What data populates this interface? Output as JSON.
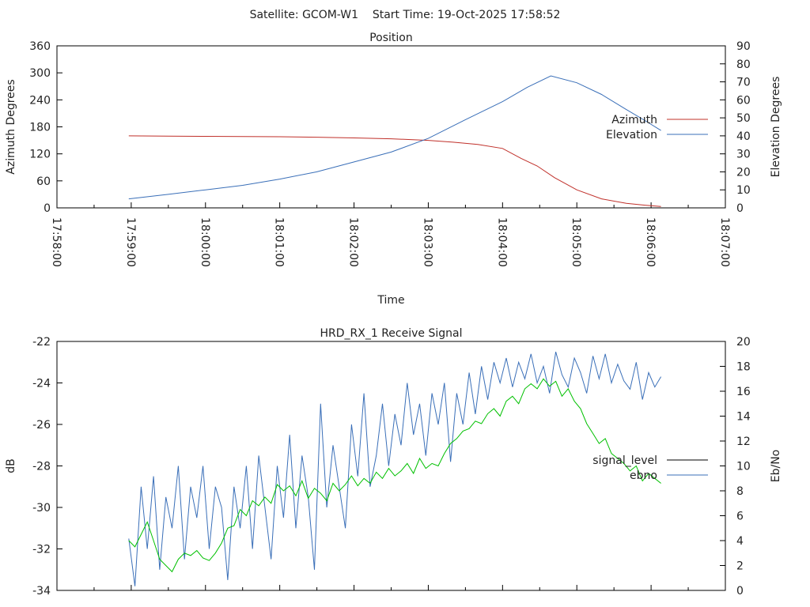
{
  "header": {
    "title": "Satellite: GCOM-W1    Start Time: 19-Oct-2025 17:58:52"
  },
  "chart_data": [
    {
      "type": "line",
      "title": "Position",
      "xlabel": "Time",
      "ylabel": "Azimuth Degrees",
      "y2label": "Elevation Degrees",
      "xlim_seconds": [
        0,
        540
      ],
      "x_origin": "17:58:00",
      "xticks": [
        "17:58:00",
        "17:59:00",
        "18:00:00",
        "18:01:00",
        "18:02:00",
        "18:03:00",
        "18:04:00",
        "18:05:00",
        "18:06:00",
        "18:07:00"
      ],
      "ylim": [
        0,
        360
      ],
      "yticks": [
        "0",
        "60",
        "120",
        "180",
        "240",
        "300",
        "360"
      ],
      "y2lim": [
        0,
        90
      ],
      "y2ticks": [
        "0",
        "10",
        "20",
        "30",
        "40",
        "50",
        "60",
        "70",
        "80",
        "90"
      ],
      "legend_position": "right",
      "series": [
        {
          "name": "Azimuth",
          "axis": "y",
          "color": "#c0302a",
          "x": [
            58,
            90,
            120,
            150,
            180,
            210,
            240,
            270,
            300,
            320,
            340,
            360,
            375,
            388,
            402,
            420,
            440,
            460,
            475,
            488
          ],
          "values": [
            160,
            159.5,
            159,
            158.5,
            158,
            157,
            155.5,
            153.5,
            150,
            146,
            141,
            132,
            110,
            93,
            67,
            40,
            20,
            10,
            6,
            3
          ]
        },
        {
          "name": "Elevation",
          "axis": "y2",
          "color": "#3a6fb8",
          "x": [
            58,
            90,
            120,
            150,
            180,
            210,
            240,
            270,
            300,
            330,
            360,
            380,
            399,
            420,
            440,
            459,
            475,
            488
          ],
          "values": [
            5,
            7.5,
            10,
            12.5,
            16,
            20,
            25.5,
            31,
            38.6,
            49,
            59,
            67,
            73.3,
            69.5,
            63,
            55,
            48.5,
            43
          ]
        }
      ]
    },
    {
      "type": "line",
      "title": "HRD_RX_1 Receive Signal",
      "xlabel": "",
      "ylabel": "dB",
      "y2label": "Eb/No",
      "xlim_seconds": [
        0,
        540
      ],
      "ylim": [
        -34,
        -22
      ],
      "yticks": [
        "-34",
        "-32",
        "-30",
        "-28",
        "-26",
        "-24",
        "-22"
      ],
      "y2lim": [
        0,
        20
      ],
      "y2ticks": [
        "0",
        "2",
        "4",
        "6",
        "8",
        "10",
        "12",
        "14",
        "16",
        "18",
        "20"
      ],
      "legend_position": "right",
      "legend": [
        {
          "name": "signal_level",
          "color": "#000000"
        },
        {
          "name": "ebno",
          "color": "#3a6fb8"
        }
      ],
      "x_start": 58,
      "x_step": 5,
      "series": [
        {
          "name": "signal_level",
          "axis": "y",
          "color": "#3a6fb8",
          "values": [
            -31.5,
            -33.8,
            -29,
            -32,
            -28.5,
            -33,
            -29.5,
            -31,
            -28,
            -32.5,
            -29,
            -30.5,
            -28,
            -32,
            -29,
            -30,
            -33.5,
            -29,
            -31,
            -28,
            -32,
            -27.5,
            -30,
            -32.5,
            -28,
            -30.5,
            -26.5,
            -31,
            -27.5,
            -29.5,
            -33,
            -25,
            -30,
            -27,
            -29,
            -31,
            -26,
            -28.5,
            -24.5,
            -29,
            -27.5,
            -25,
            -28,
            -25.5,
            -27,
            -24,
            -26.5,
            -25,
            -27.5,
            -24.5,
            -26,
            -24,
            -27.8,
            -24.5,
            -26,
            -23.5,
            -25.5,
            -23.2,
            -24.8,
            -23,
            -24,
            -22.8,
            -24.2,
            -23,
            -23.8,
            -22.6,
            -24,
            -23.2,
            -24.5,
            -22.5,
            -23.6,
            -24.2,
            -22.8,
            -23.5,
            -24.5,
            -22.7,
            -23.8,
            -22.6,
            -24,
            -23.1,
            -23.9,
            -24.3,
            -23,
            -24.8,
            -23.5,
            -24.2,
            -23.7
          ]
        },
        {
          "name": "ebno",
          "axis": "y2",
          "color": "#00c000",
          "values": [
            4,
            3.5,
            4.5,
            5.5,
            4,
            2.5,
            2,
            1.5,
            2.5,
            3,
            2.8,
            3.2,
            2.6,
            2.4,
            3,
            3.8,
            5,
            5.2,
            6.5,
            6,
            7.2,
            6.8,
            7.5,
            7,
            8.5,
            8,
            8.4,
            7.6,
            8.8,
            7.4,
            8.2,
            7.8,
            7.2,
            8.6,
            8,
            8.5,
            9.2,
            8.4,
            9,
            8.6,
            9.5,
            9,
            9.8,
            9.2,
            9.6,
            10.2,
            9.4,
            10.6,
            9.8,
            10.2,
            10,
            11,
            11.8,
            12.2,
            12.8,
            13,
            13.6,
            13.4,
            14.2,
            14.6,
            14,
            15.2,
            15.6,
            15,
            16.2,
            16.6,
            16.2,
            17,
            16.4,
            16.8,
            15.6,
            16.2,
            15.2,
            14.6,
            13.4,
            12.6,
            11.8,
            12.2,
            11,
            10.6,
            10.2,
            9.6,
            10,
            8.8,
            9.4,
            9,
            8.6
          ]
        }
      ]
    }
  ]
}
